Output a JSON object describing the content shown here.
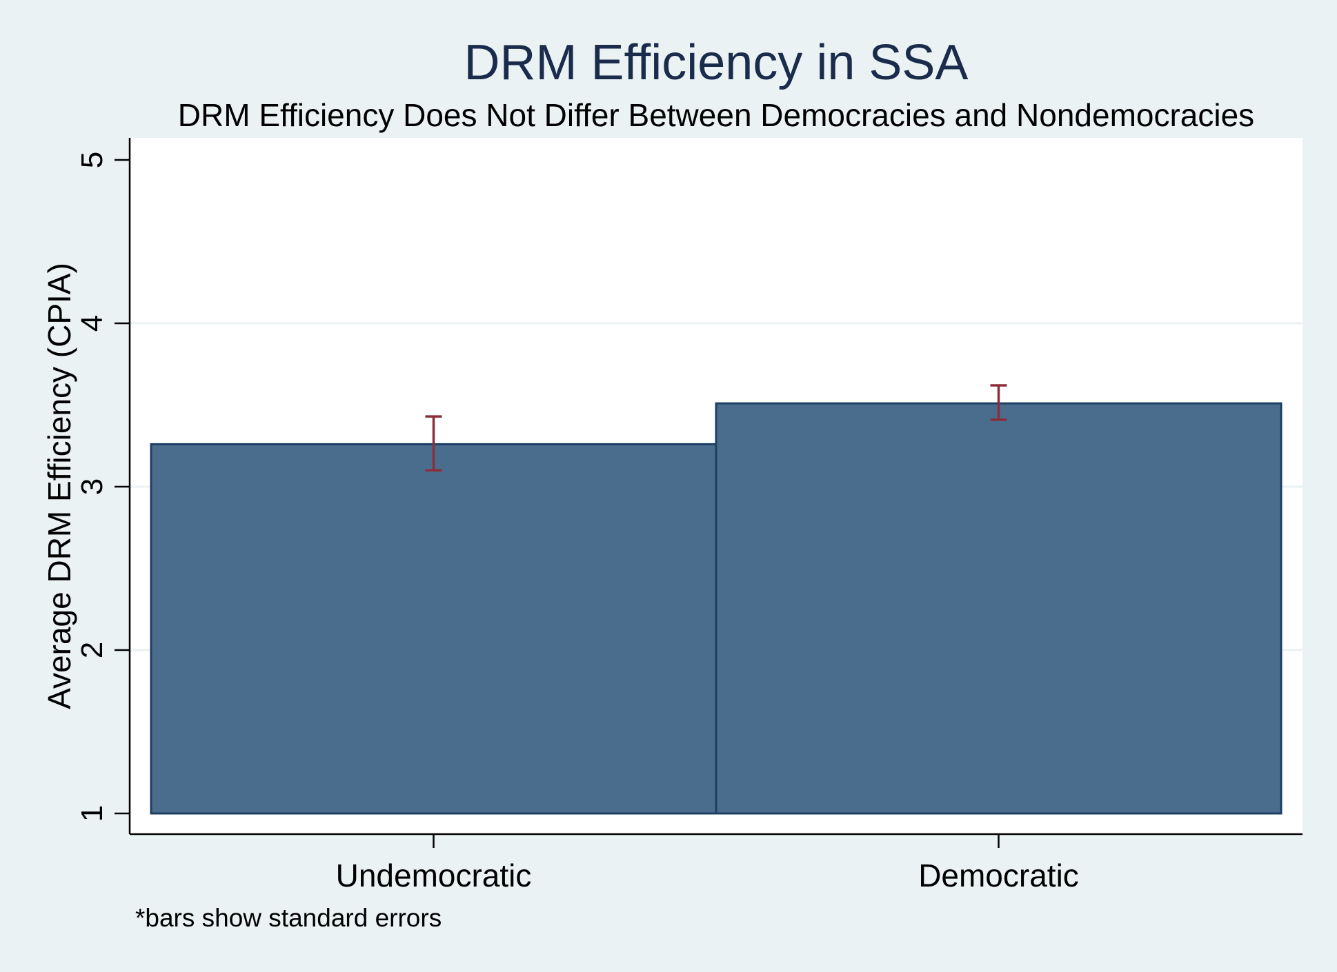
{
  "chart_data": {
    "type": "bar",
    "title": "DRM Efficiency in SSA",
    "subtitle": "DRM Efficiency Does Not Differ Between Democracies and Nondemocracies",
    "xlabel": "",
    "ylabel": "Average DRM Efficiency (CPIA)",
    "categories": [
      "Undemocratic",
      "Democratic"
    ],
    "values": [
      3.26,
      3.51
    ],
    "error_bars": [
      {
        "low": 3.1,
        "high": 3.43
      },
      {
        "low": 3.41,
        "high": 3.62
      }
    ],
    "ylim": [
      1,
      5
    ],
    "yticks": [
      "1",
      "2",
      "3",
      "4",
      "5"
    ],
    "grid": true,
    "note": "*bars show standard errors",
    "colors": {
      "bar_fill": "#4a6d8d",
      "bar_stroke": "#1e3f63",
      "error_bar": "#8b2e3a",
      "plot_bg": "#ffffff",
      "page_bg": "#eaf2f3",
      "grid": "#eaf2f3",
      "title": "#1a2b4c"
    }
  }
}
